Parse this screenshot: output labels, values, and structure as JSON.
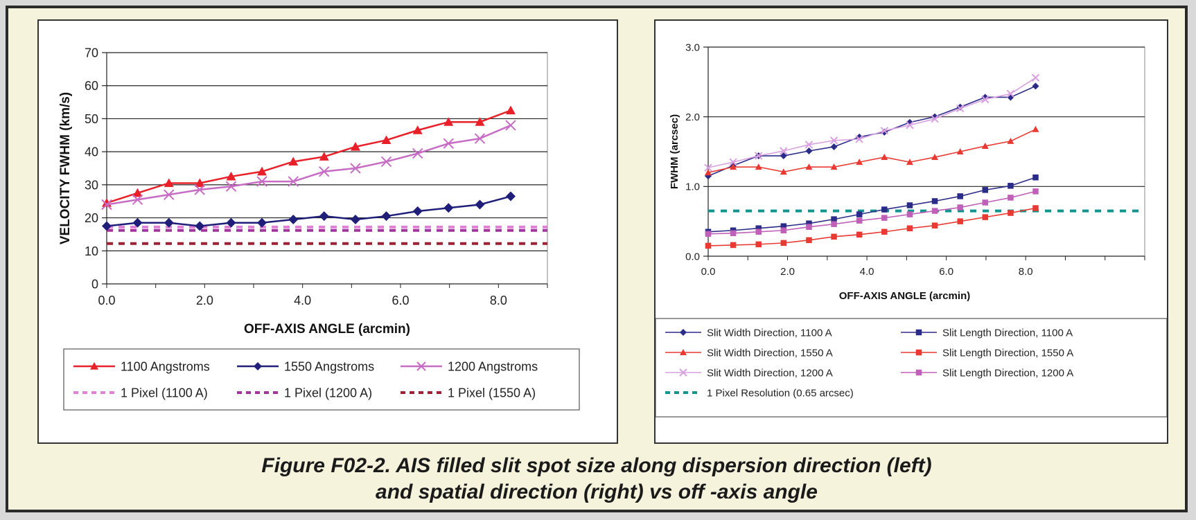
{
  "caption": {
    "line1": "Figure F02-2.  AIS filled slit spot size along dispersion direction (left)",
    "line2": "and spatial direction (right) vs off -axis angle"
  },
  "chart_data": [
    {
      "type": "line",
      "xlabel": "OFF-AXIS ANGLE (arcmin)",
      "ylabel": "VELOCITY FWHM (km/s)",
      "xlim": [
        0,
        9
      ],
      "ylim": [
        0,
        70
      ],
      "xticks": [
        "0.0",
        "2.0",
        "4.0",
        "6.0",
        "8.0"
      ],
      "xtick_values": [
        0,
        2,
        4,
        6,
        8
      ],
      "yticks": [
        "0",
        "10",
        "20",
        "30",
        "40",
        "50",
        "60",
        "70"
      ],
      "ytick_values": [
        0,
        10,
        20,
        30,
        40,
        50,
        60,
        70
      ],
      "grid": "horizontal",
      "legend_position": "bottom",
      "x": [
        0.0,
        0.63,
        1.27,
        1.9,
        2.54,
        3.17,
        3.81,
        4.44,
        5.08,
        5.71,
        6.35,
        6.98,
        7.62,
        8.25
      ],
      "series": [
        {
          "name": "1100 Angstroms",
          "color": "#e8202a",
          "marker": "triangle",
          "values": [
            24.5,
            27.5,
            30.5,
            30.5,
            32.5,
            34,
            37,
            38.5,
            41.5,
            43.5,
            46.5,
            49,
            49,
            52.5
          ]
        },
        {
          "name": "1550 Angstroms",
          "color": "#1f1f7a",
          "marker": "diamond",
          "values": [
            17.5,
            18.5,
            18.5,
            17.5,
            18.5,
            18.5,
            19.5,
            20.5,
            19.5,
            20.5,
            22,
            23,
            24,
            26.5
          ]
        },
        {
          "name": "1200 Angstroms",
          "color": "#c76cc4",
          "marker": "x",
          "values": [
            24,
            25.5,
            27,
            28.5,
            29.5,
            31,
            31,
            34,
            35,
            37,
            39.5,
            42.5,
            44,
            48
          ]
        }
      ],
      "reference_lines": [
        {
          "name": "1 Pixel (1100 A)",
          "color": "#e081d6",
          "y": 17.2
        },
        {
          "name": "1 Pixel (1200 A)",
          "color": "#a0359c",
          "y": 16.2
        },
        {
          "name": "1 Pixel (1550 A)",
          "color": "#9e2235",
          "y": 12.2
        }
      ]
    },
    {
      "type": "line",
      "xlabel": "OFF-AXIS ANGLE (arcmin)",
      "ylabel": "FWHM (arcsec)",
      "xlim": [
        0,
        11
      ],
      "ylim": [
        0,
        3
      ],
      "xticks": [
        "0.0",
        "2.0",
        "4.0",
        "6.0",
        "8.0"
      ],
      "xtick_values": [
        0,
        2,
        4,
        6,
        8
      ],
      "yticks": [
        "0.0",
        "1.0",
        "2.0",
        "3.0"
      ],
      "ytick_values": [
        0,
        1,
        2,
        3
      ],
      "grid": "horizontal",
      "legend_position": "bottom",
      "x": [
        0.0,
        0.63,
        1.27,
        1.9,
        2.54,
        3.17,
        3.81,
        4.44,
        5.08,
        5.71,
        6.35,
        6.98,
        7.62,
        8.25
      ],
      "series": [
        {
          "name": "Slit Width Direction, 1100 A",
          "color": "#2b2b88",
          "marker": "diamond",
          "values": [
            1.15,
            1.3,
            1.44,
            1.44,
            1.51,
            1.57,
            1.71,
            1.78,
            1.92,
            2.0,
            2.14,
            2.28,
            2.28,
            2.44
          ]
        },
        {
          "name": "Slit Length Direction, 1100 A",
          "color": "#2b2b88",
          "marker": "square",
          "values": [
            0.35,
            0.37,
            0.4,
            0.43,
            0.47,
            0.53,
            0.6,
            0.67,
            0.73,
            0.79,
            0.86,
            0.95,
            1.01,
            1.13
          ]
        },
        {
          "name": "Slit Width Direction, 1550 A",
          "color": "#e83a32",
          "marker": "triangle",
          "values": [
            1.2,
            1.28,
            1.28,
            1.21,
            1.28,
            1.28,
            1.35,
            1.42,
            1.35,
            1.42,
            1.5,
            1.58,
            1.65,
            1.82
          ]
        },
        {
          "name": "Slit Length Direction, 1550 A",
          "color": "#e83a32",
          "marker": "square",
          "values": [
            0.15,
            0.16,
            0.17,
            0.19,
            0.23,
            0.28,
            0.31,
            0.35,
            0.4,
            0.44,
            0.5,
            0.56,
            0.62,
            0.69
          ]
        },
        {
          "name": "Slit Width Direction, 1200 A",
          "color": "#d8a0e0",
          "marker": "x",
          "values": [
            1.27,
            1.35,
            1.44,
            1.51,
            1.6,
            1.66,
            1.68,
            1.8,
            1.88,
            1.97,
            2.12,
            2.25,
            2.33,
            2.56
          ]
        },
        {
          "name": "Slit Length Direction, 1200 A",
          "color": "#c060b8",
          "marker": "square",
          "values": [
            0.32,
            0.33,
            0.35,
            0.37,
            0.42,
            0.46,
            0.51,
            0.55,
            0.6,
            0.65,
            0.7,
            0.77,
            0.84,
            0.93
          ]
        }
      ],
      "reference_lines": [
        {
          "name": "1 Pixel Resolution (0.65 arcsec)",
          "color": "#11958e",
          "y": 0.65
        }
      ]
    }
  ]
}
